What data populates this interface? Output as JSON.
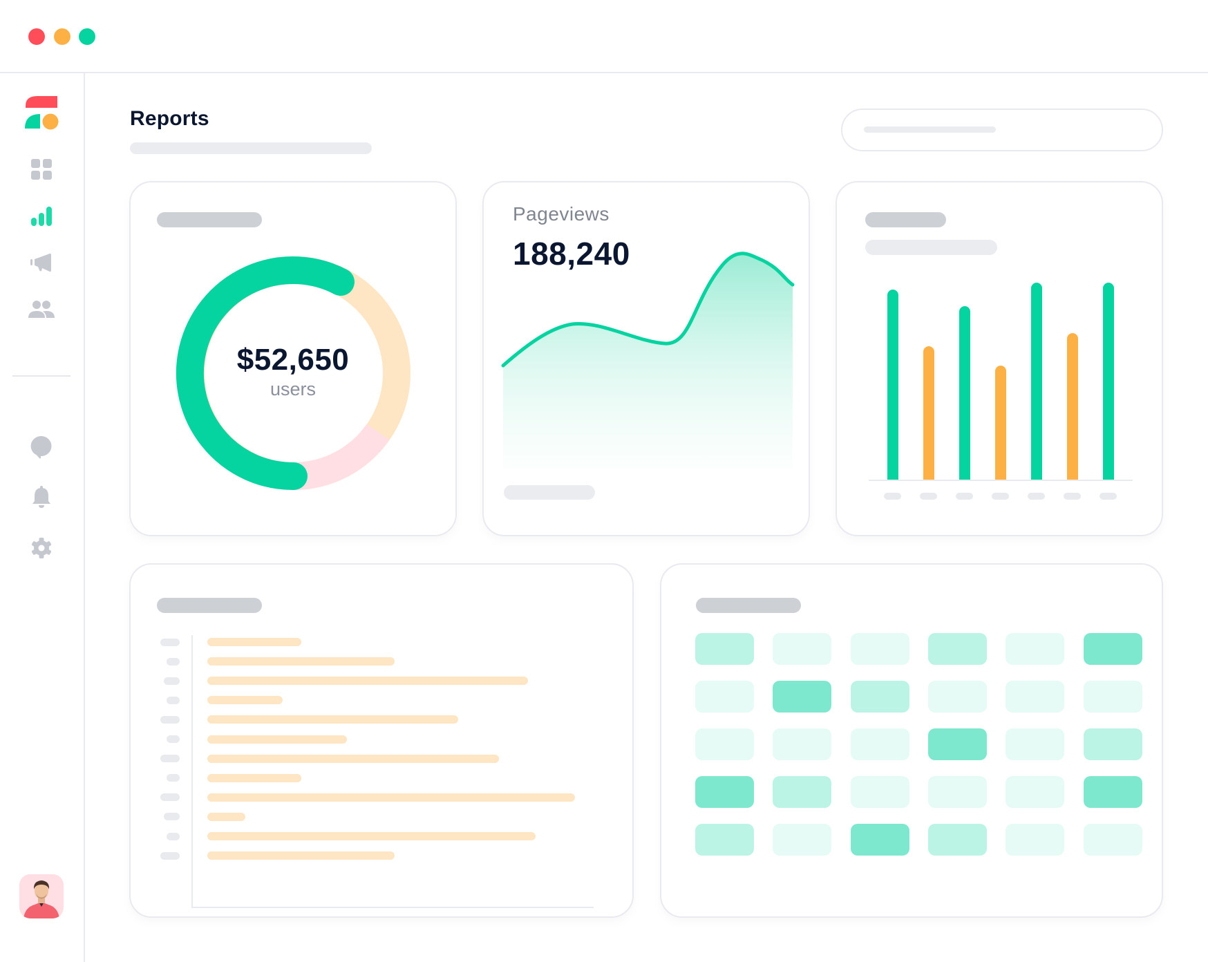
{
  "window": {
    "controls": [
      {
        "name": "close",
        "color": "#ff4d5a"
      },
      {
        "name": "minimize",
        "color": "#fdb144"
      },
      {
        "name": "maximize",
        "color": "#05d3a0"
      }
    ]
  },
  "colors": {
    "accent_green": "#05d3a0",
    "accent_orange": "#fdb144",
    "accent_red": "#ff4d5a",
    "peach": "#fee5c3",
    "pink": "#ffdfe3",
    "text_dark": "#0b1630",
    "text_muted": "#8a909c",
    "icon_gray": "#c5c8ce",
    "placeholder_dark": "#cdd0d5",
    "placeholder_light": "#e9eaed"
  },
  "sidebar": {
    "logo": "brand-logo",
    "items": [
      {
        "name": "dashboard",
        "icon": "grid-icon",
        "active": false
      },
      {
        "name": "reports",
        "icon": "bar-chart-icon",
        "active": true
      },
      {
        "name": "campaigns",
        "icon": "megaphone-icon",
        "active": false
      },
      {
        "name": "users",
        "icon": "people-icon",
        "active": false
      }
    ],
    "bottom_items": [
      {
        "name": "messages",
        "icon": "chat-icon"
      },
      {
        "name": "notifications",
        "icon": "bell-icon"
      },
      {
        "name": "settings",
        "icon": "gear-icon"
      }
    ],
    "avatar": "user-avatar"
  },
  "header": {
    "title": "Reports",
    "search": {
      "placeholder": ""
    }
  },
  "cards": {
    "revenue": {
      "value": "$52,650",
      "label": "users"
    },
    "pageviews": {
      "label": "Pageviews",
      "value": "188,240"
    }
  },
  "chart_data": [
    {
      "type": "pie",
      "title": "",
      "center_value": "$52,650",
      "center_label": "users",
      "segments": [
        {
          "name": "segment-1",
          "value": 60,
          "color": "#05d3a0"
        },
        {
          "name": "segment-2",
          "value": 26,
          "color": "#fee5c3"
        },
        {
          "name": "segment-3",
          "value": 14,
          "color": "#ffdfe3"
        }
      ]
    },
    {
      "type": "area",
      "title": "Pageviews",
      "total": "188,240",
      "x": [
        0,
        1,
        2,
        3,
        4,
        5,
        6
      ],
      "values": [
        30,
        62,
        56,
        47,
        52,
        98,
        85
      ],
      "color": "#05d3a0"
    },
    {
      "type": "bar",
      "title": "",
      "categories": [
        "",
        "",
        "",
        "",
        "",
        "",
        ""
      ],
      "values": [
        275,
        193,
        251,
        165,
        285,
        212,
        285
      ],
      "colors": [
        "#05d3a0",
        "#fdb144",
        "#05d3a0",
        "#fdb144",
        "#05d3a0",
        "#fdb144",
        "#05d3a0"
      ]
    },
    {
      "type": "bar",
      "orientation": "horizontal",
      "title": "",
      "categories": [
        "",
        "",
        "",
        "",
        "",
        "",
        "",
        "",
        "",
        "",
        "",
        ""
      ],
      "values": [
        136,
        271,
        464,
        109,
        363,
        202,
        422,
        136,
        532,
        55,
        475,
        271
      ],
      "label_widths": [
        28,
        19,
        23,
        19,
        28,
        19,
        28,
        19,
        28,
        23,
        19,
        28
      ]
    },
    {
      "type": "heatmap",
      "title": "",
      "rows": 5,
      "cols": 6,
      "levels": [
        [
          2,
          1,
          1,
          2,
          1,
          3
        ],
        [
          1,
          3,
          2,
          1,
          1,
          1
        ],
        [
          1,
          1,
          1,
          3,
          1,
          2
        ],
        [
          3,
          2,
          1,
          1,
          1,
          3
        ],
        [
          2,
          1,
          3,
          2,
          1,
          1
        ]
      ],
      "level_colors": {
        "1": "#e6fbf5",
        "2": "#bbf3e4",
        "3": "#7ee8cf"
      }
    }
  ]
}
